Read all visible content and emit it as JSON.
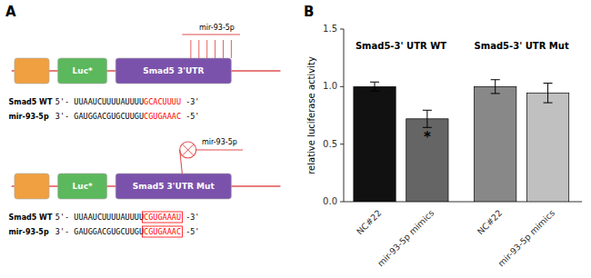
{
  "chart_data": [
    {
      "type": "diagram",
      "title": "A",
      "annotations": [
        "Luc*",
        "Smad5 3'UTR",
        "mir-93-5p",
        "Smad5 WT",
        "mir-93-5p",
        "5'- UUAAUCUUUUAUUUU",
        "3'- GAUGGACGUGCUUGU",
        "GCACUUUU",
        "CGUGAAAC",
        " -3'",
        " -5'",
        "Luc*",
        "Smad5 3'UTR Mut",
        "mir-93-5p",
        "Smad5 WT",
        "mir-93-5p",
        "5'- UUAAUCUUUUAUUUU",
        "3'- GAUGGACGUGCUUGU",
        "CGUGAAAU",
        "CGUGAAAC",
        " -3'",
        " -5'"
      ],
      "colors": [
        "#f0a040",
        "#5cb85c",
        "#7b52ab",
        "#e05050",
        "red"
      ]
    },
    {
      "type": "bar",
      "title": "B",
      "categories": [
        "NC#22",
        "mir-93-5p mimics",
        "NC#22",
        "mir-93-5p mimics"
      ],
      "values": [
        1.0,
        0.72,
        1.0,
        0.945
      ],
      "errors": [
        0.04,
        0.075,
        0.06,
        0.085
      ],
      "colors": [
        "#111111",
        "#656565",
        "#888888",
        "#c0c0c0"
      ],
      "ylabel": "relative luciferase activity",
      "ylim": [
        0,
        1.5
      ],
      "yticks": [
        {
          "value": 0.0,
          "label": "0.0"
        },
        0.5,
        {
          "value": 1.0,
          "label": "1.0"
        },
        1.5
      ],
      "annotations": [
        "Smad5-3' UTR WT",
        "Smad5-3' UTR Mut",
        "*"
      ]
    }
  ]
}
